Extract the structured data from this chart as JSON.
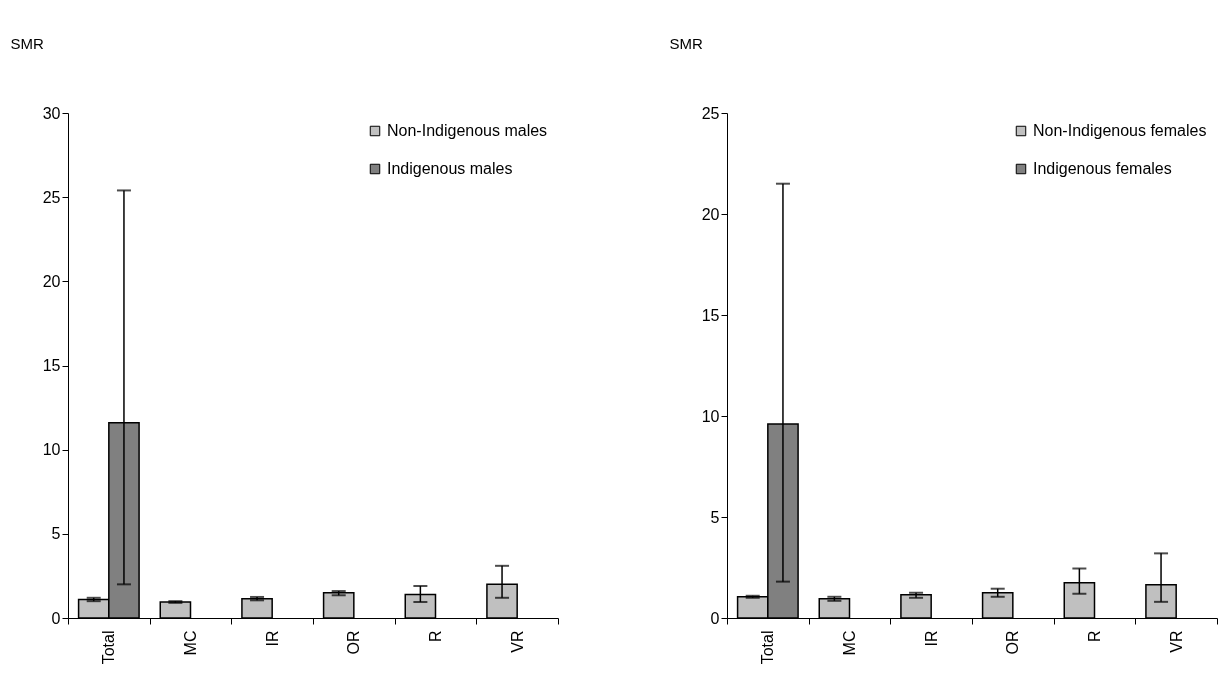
{
  "chart_data": [
    {
      "type": "bar",
      "ylabel": "SMR",
      "categories": [
        "Total",
        "MC",
        "IR",
        "OR",
        "R",
        "VR"
      ],
      "ylim": [
        0,
        30
      ],
      "yticks": [
        0,
        5,
        10,
        15,
        20,
        25,
        30
      ],
      "grid": false,
      "legend": "top right",
      "series": [
        {
          "name": "Non-Indigenous males",
          "color": "#c0c0c0",
          "values": [
            1.1,
            0.95,
            1.15,
            1.5,
            1.4,
            2.0
          ],
          "errors": [
            [
              1.0,
              1.2
            ],
            [
              0.9,
              1.0
            ],
            [
              1.05,
              1.25
            ],
            [
              1.35,
              1.6
            ],
            [
              0.95,
              1.9
            ],
            [
              1.2,
              3.1
            ]
          ]
        },
        {
          "name": "Indigenous males",
          "color": "#808080",
          "values": [
            11.6,
            null,
            null,
            null,
            null,
            null
          ],
          "errors": [
            [
              2.0,
              25.4
            ],
            null,
            null,
            null,
            null,
            null
          ]
        }
      ]
    },
    {
      "type": "bar",
      "ylabel": "SMR",
      "categories": [
        "Total",
        "MC",
        "IR",
        "OR",
        "R",
        "VR"
      ],
      "ylim": [
        0,
        25
      ],
      "yticks": [
        0,
        5,
        10,
        15,
        20,
        25
      ],
      "grid": false,
      "legend": "top right",
      "series": [
        {
          "name": "Non-Indigenous females",
          "color": "#c0c0c0",
          "values": [
            1.05,
            0.95,
            1.15,
            1.25,
            1.75,
            1.65
          ],
          "errors": [
            [
              1.0,
              1.1
            ],
            [
              0.85,
              1.05
            ],
            [
              1.0,
              1.25
            ],
            [
              1.05,
              1.45
            ],
            [
              1.2,
              2.45
            ],
            [
              0.8,
              3.2
            ]
          ]
        },
        {
          "name": "Indigenous females",
          "color": "#808080",
          "values": [
            9.6,
            null,
            null,
            null,
            null,
            null
          ],
          "errors": [
            [
              1.8,
              21.5
            ],
            null,
            null,
            null,
            null,
            null
          ]
        }
      ]
    }
  ]
}
